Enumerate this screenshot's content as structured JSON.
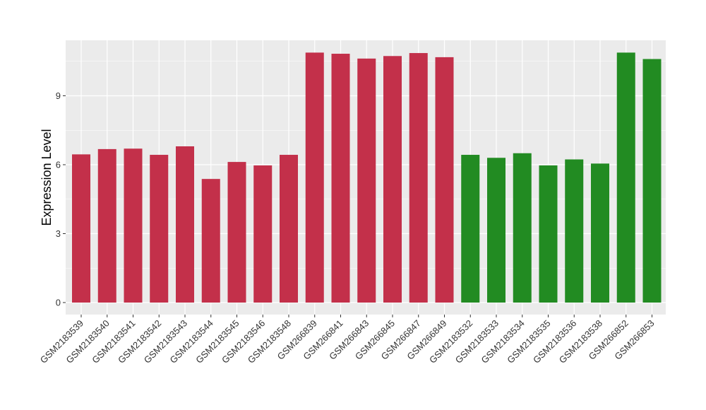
{
  "chart_data": {
    "type": "bar",
    "title": "",
    "xlabel": "",
    "ylabel": "Expression Level",
    "ylim": [
      0,
      11.4
    ],
    "yticks": [
      0,
      3,
      6,
      9
    ],
    "grid": true,
    "legend": "none",
    "colors": {
      "group_a": "#C3304A",
      "group_b": "#228B22",
      "panel": "#EBEBEB",
      "grid": "#FFFFFF"
    },
    "categories": [
      "GSM2183539",
      "GSM2183540",
      "GSM2183541",
      "GSM2183542",
      "GSM2183543",
      "GSM2183544",
      "GSM2183545",
      "GSM2183546",
      "GSM2183548",
      "GSM266839",
      "GSM266841",
      "GSM266843",
      "GSM266845",
      "GSM266847",
      "GSM266849",
      "GSM2183532",
      "GSM2183533",
      "GSM2183534",
      "GSM2183535",
      "GSM2183536",
      "GSM2183538",
      "GSM266852",
      "GSM266853"
    ],
    "values": [
      6.45,
      6.68,
      6.7,
      6.43,
      6.8,
      5.38,
      6.12,
      5.97,
      6.43,
      10.88,
      10.83,
      10.62,
      10.73,
      10.86,
      10.68,
      6.43,
      6.3,
      6.5,
      5.97,
      6.23,
      6.05,
      10.88,
      10.6
    ],
    "bar_groups": [
      "group_a",
      "group_a",
      "group_a",
      "group_a",
      "group_a",
      "group_a",
      "group_a",
      "group_a",
      "group_a",
      "group_a",
      "group_a",
      "group_a",
      "group_a",
      "group_a",
      "group_a",
      "group_b",
      "group_b",
      "group_b",
      "group_b",
      "group_b",
      "group_b",
      "group_b",
      "group_b"
    ]
  }
}
